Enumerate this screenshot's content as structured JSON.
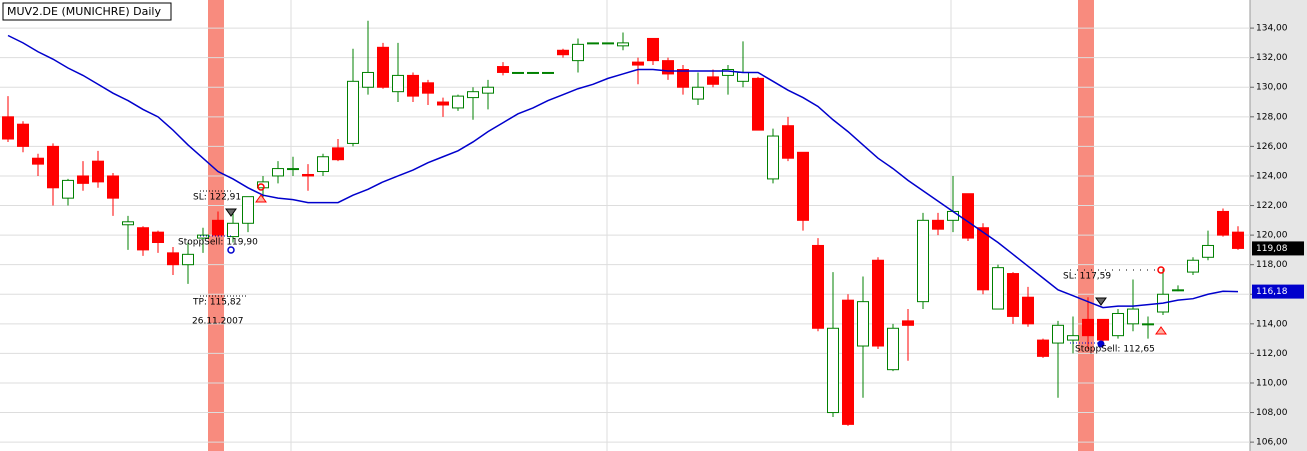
{
  "chart_data": {
    "type": "candlestick",
    "title": "MUV2.DE (MUNICHRE) Daily",
    "up_color": "#008000",
    "down_color": "#ff0000",
    "grid": true,
    "ylim": [
      105.4,
      135.9
    ],
    "yticks": [
      {
        "value": 106,
        "label": "106,00"
      },
      {
        "value": 108,
        "label": "108,00"
      },
      {
        "value": 110,
        "label": "110,00"
      },
      {
        "value": 112,
        "label": "112,00"
      },
      {
        "value": 114,
        "label": "114,00"
      },
      {
        "value": 116,
        "label": "116,00"
      },
      {
        "value": 118,
        "label": "118,00"
      },
      {
        "value": 120,
        "label": "120,00"
      },
      {
        "value": 122,
        "label": "122,00"
      },
      {
        "value": 124,
        "label": "124,00"
      },
      {
        "value": 126,
        "label": "126,00"
      },
      {
        "value": 128,
        "label": "128,00"
      },
      {
        "value": 130,
        "label": "130,00"
      },
      {
        "value": 132,
        "label": "132,00"
      },
      {
        "value": 134,
        "label": "134,00"
      }
    ],
    "open": [
      128.0,
      127.5,
      125.2,
      126.0,
      122.5,
      124.0,
      125.0,
      124.0,
      120.7,
      120.5,
      120.2,
      118.8,
      118.0,
      119.8,
      121.0,
      119.9,
      120.8,
      123.2,
      124.0,
      124.5,
      124.1,
      124.3,
      125.9,
      126.2,
      130.0,
      132.7,
      129.7,
      130.8,
      130.3,
      129.0,
      128.6,
      129.3,
      129.6,
      131.4,
      131.0,
      131.0,
      131.0,
      132.5,
      131.8,
      133.0,
      133.0,
      132.8,
      131.7,
      133.3,
      131.8,
      131.2,
      129.2,
      130.7,
      130.8,
      130.4,
      130.6,
      123.8,
      127.4,
      125.6,
      119.3,
      108.0,
      115.6,
      112.5,
      118.3,
      110.9,
      114.2,
      115.5,
      121.0,
      121.0,
      122.8,
      120.5,
      115.0,
      117.4,
      115.8,
      112.9,
      112.7,
      112.9,
      114.3,
      114.3,
      113.2,
      114.0,
      114.0,
      114.8,
      116.3,
      117.5,
      118.5,
      121.6,
      120.2
    ],
    "high": [
      129.4,
      127.7,
      125.5,
      126.2,
      123.8,
      125.0,
      125.7,
      124.2,
      121.3,
      120.6,
      120.3,
      119.2,
      119.5,
      120.5,
      121.6,
      121.5,
      122.6,
      124.0,
      125.0,
      125.3,
      124.8,
      125.5,
      126.5,
      132.6,
      134.5,
      133.0,
      133.0,
      131.0,
      130.5,
      129.3,
      129.5,
      130.0,
      130.5,
      131.7,
      131.0,
      131.0,
      131.0,
      132.6,
      133.3,
      133.0,
      133.0,
      133.7,
      132.0,
      133.3,
      132.0,
      131.5,
      131.0,
      131.2,
      131.5,
      133.1,
      130.7,
      127.2,
      128.0,
      125.6,
      119.8,
      117.5,
      116.0,
      117.2,
      118.5,
      114.0,
      115.0,
      121.5,
      121.5,
      124.0,
      122.8,
      120.8,
      118.0,
      117.5,
      116.5,
      113.0,
      114.2,
      114.5,
      115.8,
      114.3,
      115.0,
      117.0,
      114.5,
      117.7,
      116.6,
      118.5,
      120.3,
      121.8,
      120.6
    ],
    "low": [
      126.3,
      125.6,
      124.0,
      122.0,
      122.0,
      123.0,
      123.2,
      121.3,
      119.0,
      118.6,
      118.8,
      117.3,
      116.7,
      118.8,
      119.9,
      119.5,
      120.2,
      122.5,
      123.5,
      124.0,
      123.0,
      124.0,
      125.0,
      126.0,
      129.5,
      129.9,
      129.0,
      129.0,
      128.8,
      128.0,
      128.4,
      127.8,
      128.5,
      130.8,
      131.0,
      131.0,
      131.0,
      132.0,
      131.0,
      133.0,
      133.0,
      132.5,
      130.2,
      131.5,
      130.5,
      129.5,
      128.8,
      130.0,
      129.5,
      130.0,
      127.1,
      123.5,
      125.0,
      120.3,
      113.5,
      107.7,
      107.1,
      109.0,
      112.3,
      110.8,
      111.5,
      115.0,
      120.0,
      120.2,
      119.6,
      116.0,
      115.0,
      114.0,
      113.8,
      111.7,
      109.0,
      112.0,
      112.3,
      112.7,
      113.0,
      113.5,
      113.0,
      114.6,
      116.2,
      117.3,
      118.3,
      119.9,
      119.0
    ],
    "close": [
      126.5,
      126.0,
      124.8,
      123.2,
      123.7,
      123.5,
      123.6,
      122.5,
      120.9,
      119.0,
      119.5,
      118.0,
      118.7,
      120.0,
      120.0,
      120.8,
      122.6,
      123.6,
      124.5,
      124.5,
      124.0,
      125.3,
      125.1,
      130.4,
      131.0,
      130.0,
      130.8,
      129.4,
      129.6,
      128.8,
      129.4,
      129.7,
      130.0,
      131.0,
      131.0,
      131.0,
      131.0,
      132.2,
      132.9,
      133.0,
      133.0,
      133.0,
      131.5,
      131.8,
      130.9,
      130.0,
      130.0,
      130.2,
      131.2,
      131.0,
      127.1,
      126.7,
      125.2,
      121.0,
      113.7,
      113.7,
      107.2,
      115.5,
      112.5,
      113.7,
      113.9,
      121.0,
      120.4,
      121.6,
      119.8,
      116.3,
      117.8,
      114.5,
      114.0,
      111.8,
      113.9,
      113.2,
      113.2,
      112.9,
      114.7,
      115.0,
      114.0,
      116.0,
      116.3,
      118.3,
      119.3,
      120.0,
      119.1
    ],
    "moving_average": {
      "color": "#0000cc",
      "values": [
        133.5,
        133.0,
        132.4,
        131.9,
        131.3,
        130.8,
        130.2,
        129.6,
        129.1,
        128.5,
        128.0,
        127.1,
        126.1,
        125.2,
        124.3,
        123.8,
        123.2,
        122.7,
        122.5,
        122.4,
        122.2,
        122.2,
        122.2,
        122.7,
        123.1,
        123.6,
        124.0,
        124.4,
        124.9,
        125.3,
        125.7,
        126.3,
        127.0,
        127.6,
        128.2,
        128.6,
        129.1,
        129.5,
        129.9,
        130.2,
        130.6,
        130.9,
        131.2,
        131.2,
        131.1,
        131.1,
        131.1,
        131.1,
        131.1,
        131.0,
        131.0,
        130.4,
        129.8,
        129.3,
        128.7,
        127.8,
        127.0,
        126.1,
        125.2,
        124.5,
        123.7,
        123.0,
        122.3,
        121.6,
        120.9,
        120.2,
        119.5,
        118.7,
        117.9,
        117.1,
        116.3,
        115.9,
        115.5,
        115.1,
        115.2,
        115.2,
        115.3,
        115.4,
        115.6,
        115.7,
        116.0,
        116.2,
        116.18
      ]
    },
    "last_price_label": "119,08",
    "ma_label": "116,18",
    "annotations": [
      "SL: 122,91",
      "StoppSell: 119,90",
      "TP: 115,82",
      "26.11.2007",
      "SL: 117,59",
      "StoppSell: 112,65"
    ]
  }
}
